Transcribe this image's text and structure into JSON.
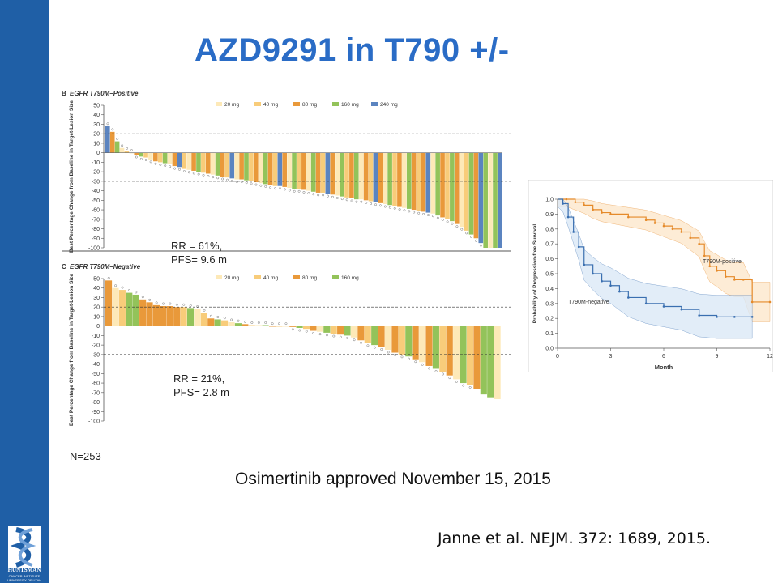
{
  "title": "AZD9291 in T790 +/-",
  "logo": {
    "name": "HUNTSMAN",
    "sub1": "CANCER INSTITUTE",
    "sub2": "UNIVERSITY OF UTAH"
  },
  "n_label": "N=253",
  "approved": "Osimertinib approved November 15, 2015",
  "citation": "Janne et al. NEJM. 372: 1689, 2015.",
  "colors": {
    "20 mg": "#fde9b8",
    "40 mg": "#f8cc7a",
    "80 mg": "#e9993a",
    "160 mg": "#93c35a",
    "240 mg": "#5b84c0",
    "sidebar": "#1f5fa6",
    "title": "#2a6cc6",
    "positive": "#e58a2a",
    "negative": "#3a6fb0"
  },
  "chart_data": [
    {
      "type": "bar",
      "panel": "B",
      "title": "EGFR T790M–Positive",
      "ylabel": "Best Percentage Change from Baseline in Target-Lesion Size",
      "ylim": [
        -100,
        50
      ],
      "yticks": [
        50,
        40,
        30,
        20,
        10,
        0,
        -10,
        -20,
        -30,
        -40,
        -50,
        -60,
        -70,
        -80,
        -90,
        -100
      ],
      "reference_lines": [
        20,
        -30
      ],
      "legend": [
        "20 mg",
        "40 mg",
        "80 mg",
        "160 mg",
        "240 mg"
      ],
      "annotation": [
        "RR  = 61%,",
        "PFS= 9.6 m"
      ],
      "values": [
        28,
        22,
        12,
        5,
        2,
        0,
        -2,
        -4,
        -5,
        -7,
        -9,
        -10,
        -11,
        -12,
        -14,
        -15,
        -17,
        -18,
        -19,
        -20,
        -21,
        -22,
        -23,
        -24,
        -25,
        -26,
        -27,
        -28,
        -28,
        -29,
        -30,
        -31,
        -32,
        -33,
        -34,
        -35,
        -35,
        -36,
        -37,
        -38,
        -38,
        -39,
        -40,
        -41,
        -42,
        -42,
        -43,
        -44,
        -45,
        -46,
        -47,
        -48,
        -49,
        -49,
        -50,
        -51,
        -52,
        -53,
        -54,
        -55,
        -56,
        -57,
        -58,
        -59,
        -60,
        -61,
        -62,
        -63,
        -64,
        -66,
        -68,
        -70,
        -72,
        -75,
        -78,
        -82,
        -86,
        -90,
        -95,
        -100,
        -100,
        -100,
        -100
      ],
      "doses": [
        "240 mg",
        "80 mg",
        "160 mg",
        "20 mg",
        "40 mg",
        "20 mg",
        "80 mg",
        "160 mg",
        "40 mg",
        "20 mg",
        "80 mg",
        "40 mg",
        "160 mg",
        "20 mg",
        "80 mg",
        "240 mg",
        "40 mg",
        "20 mg",
        "80 mg",
        "160 mg",
        "40 mg",
        "80 mg",
        "20 mg",
        "160 mg",
        "80 mg",
        "40 mg",
        "240 mg",
        "20 mg",
        "80 mg",
        "160 mg",
        "40 mg",
        "80 mg",
        "20 mg",
        "160 mg",
        "80 mg",
        "40 mg",
        "240 mg",
        "80 mg",
        "20 mg",
        "160 mg",
        "40 mg",
        "80 mg",
        "20 mg",
        "160 mg",
        "80 mg",
        "40 mg",
        "240 mg",
        "80 mg",
        "20 mg",
        "160 mg",
        "40 mg",
        "80 mg",
        "160 mg",
        "20 mg",
        "80 mg",
        "40 mg",
        "240 mg",
        "80 mg",
        "20 mg",
        "160 mg",
        "40 mg",
        "80 mg",
        "20 mg",
        "160 mg",
        "80 mg",
        "40 mg",
        "80 mg",
        "240 mg",
        "20 mg",
        "160 mg",
        "80 mg",
        "40 mg",
        "160 mg",
        "80 mg",
        "20 mg",
        "40 mg",
        "160 mg",
        "80 mg",
        "240 mg",
        "160 mg",
        "20 mg",
        "160 mg",
        "240 mg"
      ]
    },
    {
      "type": "bar",
      "panel": "C",
      "title": "EGFR T790M–Negative",
      "ylabel": "Best Percentage Change from Baseline in Target-Lesion Size",
      "ylim": [
        -100,
        50
      ],
      "yticks": [
        50,
        40,
        30,
        20,
        10,
        0,
        -10,
        -20,
        -30,
        -40,
        -50,
        -60,
        -70,
        -80,
        -90,
        -100
      ],
      "reference_lines": [
        20,
        -30
      ],
      "legend": [
        "20 mg",
        "40 mg",
        "80 mg",
        "160 mg"
      ],
      "annotation": [
        "RR  = 21%,",
        "PFS= 2.8 m"
      ],
      "values": [
        48,
        40,
        38,
        35,
        33,
        28,
        25,
        22,
        21,
        21,
        20,
        20,
        19,
        18,
        14,
        8,
        7,
        6,
        4,
        3,
        2,
        1,
        1,
        1,
        0,
        0,
        0,
        -1,
        -2,
        -3,
        -5,
        -6,
        -7,
        -8,
        -9,
        -10,
        -12,
        -15,
        -18,
        -20,
        -22,
        -25,
        -28,
        -30,
        -32,
        -35,
        -38,
        -42,
        -45,
        -48,
        -52,
        -56,
        -60,
        -62,
        -66,
        -72,
        -75,
        -77
      ],
      "doses": [
        "80 mg",
        "20 mg",
        "40 mg",
        "160 mg",
        "160 mg",
        "80 mg",
        "80 mg",
        "80 mg",
        "80 mg",
        "80 mg",
        "80 mg",
        "40 mg",
        "160 mg",
        "20 mg",
        "40 mg",
        "80 mg",
        "160 mg",
        "40 mg",
        "20 mg",
        "160 mg",
        "80 mg",
        "40 mg",
        "20 mg",
        "160 mg",
        "80 mg",
        "40 mg",
        "20 mg",
        "80 mg",
        "160 mg",
        "40 mg",
        "80 mg",
        "20 mg",
        "160 mg",
        "40 mg",
        "80 mg",
        "160 mg",
        "20 mg",
        "80 mg",
        "40 mg",
        "160 mg",
        "80 mg",
        "20 mg",
        "80 mg",
        "40 mg",
        "160 mg",
        "80 mg",
        "20 mg",
        "80 mg",
        "160 mg",
        "40 mg",
        "80 mg",
        "20 mg",
        "160 mg",
        "40 mg",
        "80 mg",
        "160 mg",
        "160 mg",
        "20 mg"
      ]
    },
    {
      "type": "line",
      "title": "",
      "xlabel": "Month",
      "ylabel": "Probability of Progression-free Survival",
      "xlim": [
        0,
        12
      ],
      "ylim": [
        0,
        1
      ],
      "xticks": [
        0,
        3,
        6,
        9,
        12
      ],
      "yticks": [
        0.0,
        0.1,
        0.2,
        0.3,
        0.4,
        0.5,
        0.6,
        0.7,
        0.8,
        0.9,
        1.0
      ],
      "series": [
        {
          "name": "T790M-positive",
          "x": [
            0,
            0.5,
            1.0,
            1.5,
            2.0,
            2.5,
            3.0,
            4.0,
            5.0,
            5.5,
            6.0,
            6.5,
            7.0,
            7.5,
            8.0,
            8.3,
            8.6,
            9.0,
            9.5,
            10.0,
            10.5,
            11.0,
            12.0
          ],
          "y": [
            1.0,
            1.0,
            0.98,
            0.96,
            0.93,
            0.91,
            0.9,
            0.88,
            0.86,
            0.84,
            0.82,
            0.8,
            0.78,
            0.74,
            0.7,
            0.62,
            0.55,
            0.52,
            0.48,
            0.46,
            0.46,
            0.31,
            0.31
          ]
        },
        {
          "name": "T790M-negative",
          "x": [
            0,
            0.3,
            0.6,
            0.9,
            1.2,
            1.5,
            2.0,
            2.5,
            3.0,
            3.5,
            4.0,
            5.0,
            6.0,
            7.0,
            8.0,
            9.0,
            10.0,
            11.0
          ],
          "y": [
            1.0,
            0.97,
            0.88,
            0.78,
            0.68,
            0.56,
            0.5,
            0.45,
            0.42,
            0.38,
            0.34,
            0.3,
            0.28,
            0.26,
            0.22,
            0.21,
            0.21,
            0.21
          ]
        }
      ]
    }
  ]
}
